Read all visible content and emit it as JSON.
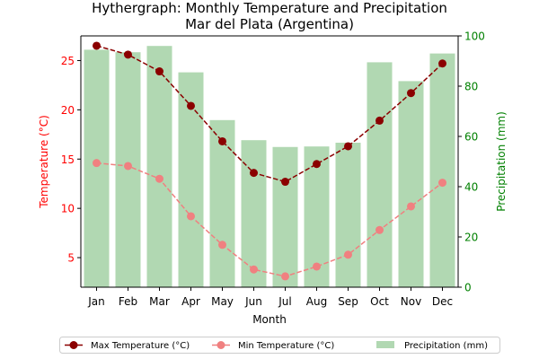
{
  "chart_data": {
    "type": "bar+line",
    "title": "Hythergraph: Monthly Temperature and Precipitation\nMar del Plata (Argentina)",
    "xlabel": "Month",
    "ylabel_left": "Temperature (°C)",
    "ylabel_right": "Precipitation (mm)",
    "categories": [
      "Jan",
      "Feb",
      "Mar",
      "Apr",
      "May",
      "Jun",
      "Jul",
      "Aug",
      "Sep",
      "Oct",
      "Nov",
      "Dec"
    ],
    "ylim_left": [
      2,
      27.5
    ],
    "ylim_right": [
      0,
      100
    ],
    "yticks_left": [
      5,
      10,
      15,
      20,
      25
    ],
    "yticks_right": [
      0,
      20,
      40,
      60,
      80,
      100
    ],
    "grid": false,
    "legend_placement": "bottom-center",
    "series": [
      {
        "name": "Max Temperature (°C)",
        "kind": "line",
        "axis": "left",
        "color": "#8b0000",
        "values": [
          26.5,
          25.6,
          23.9,
          20.4,
          16.8,
          13.6,
          12.7,
          14.5,
          16.3,
          18.9,
          21.7,
          24.7
        ]
      },
      {
        "name": "Min Temperature (°C)",
        "kind": "line",
        "axis": "left",
        "color": "#f08080",
        "values": [
          14.6,
          14.3,
          13.0,
          9.2,
          6.3,
          3.8,
          3.1,
          4.1,
          5.3,
          7.8,
          10.2,
          12.6
        ]
      },
      {
        "name": "Precipitation (mm)",
        "kind": "bar",
        "axis": "right",
        "color": "#b1d8b2",
        "values": [
          94.5,
          93.5,
          96,
          85.5,
          66.5,
          58.5,
          55.8,
          56,
          57.5,
          89.5,
          82,
          93
        ]
      }
    ],
    "colors": {
      "left_axis": "#ff0000",
      "right_axis": "#008000",
      "axis_line": "#000000"
    }
  }
}
